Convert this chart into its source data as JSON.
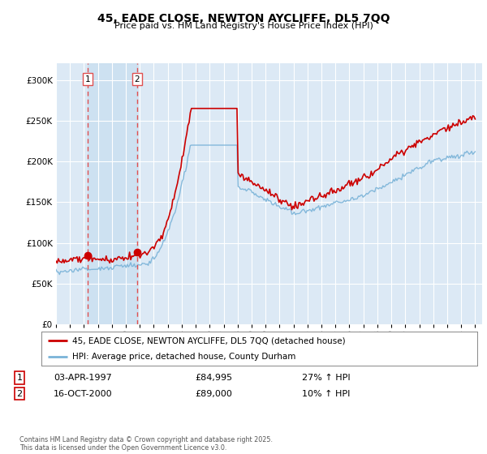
{
  "title": "45, EADE CLOSE, NEWTON AYCLIFFE, DL5 7QQ",
  "subtitle": "Price paid vs. HM Land Registry's House Price Index (HPI)",
  "legend_line1": "45, EADE CLOSE, NEWTON AYCLIFFE, DL5 7QQ (detached house)",
  "legend_line2": "HPI: Average price, detached house, County Durham",
  "transaction1_date": "03-APR-1997",
  "transaction1_price": "£84,995",
  "transaction1_hpi": "27% ↑ HPI",
  "transaction2_date": "16-OCT-2000",
  "transaction2_price": "£89,000",
  "transaction2_hpi": "10% ↑ HPI",
  "footer": "Contains HM Land Registry data © Crown copyright and database right 2025.\nThis data is licensed under the Open Government Licence v3.0.",
  "hpi_color": "#7ab3d8",
  "price_color": "#cc0000",
  "vline_color": "#e05050",
  "shade_color": "#c8dff0",
  "bg_color": "#dce9f5",
  "grid_color": "#ffffff",
  "ylim": [
    0,
    320000
  ],
  "yticks": [
    0,
    50000,
    100000,
    150000,
    200000,
    250000,
    300000
  ],
  "year_start": 1995,
  "year_end": 2025,
  "transaction1_year": 1997.25,
  "transaction2_year": 2000.8
}
